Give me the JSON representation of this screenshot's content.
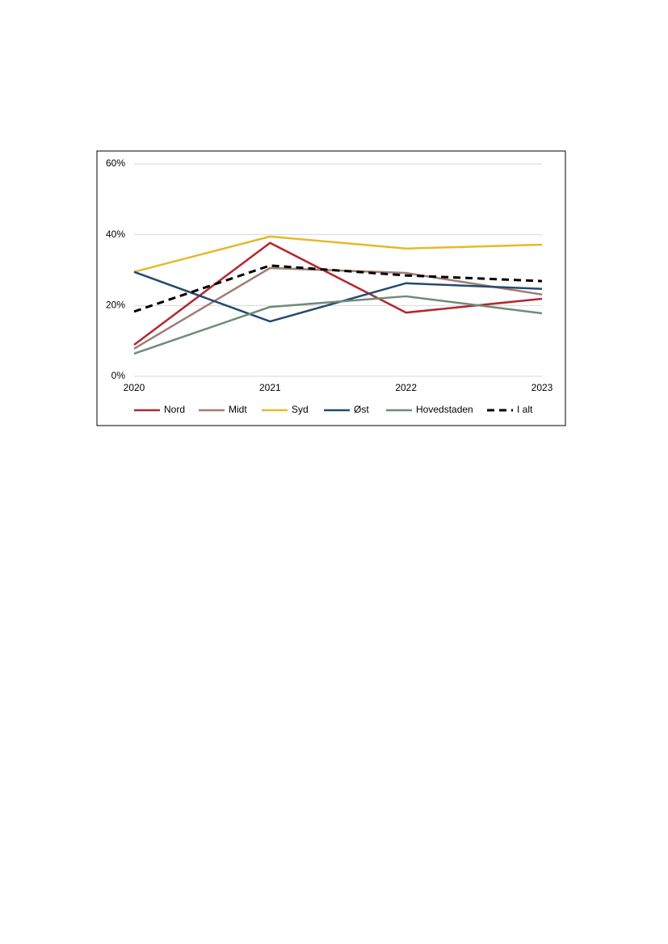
{
  "chart_data": {
    "type": "line",
    "categories": [
      "2020",
      "2021",
      "2022",
      "2023"
    ],
    "series": [
      {
        "name": "Nord",
        "color": "#b5262e",
        "values": [
          8.9,
          37.7,
          18.0,
          21.9
        ]
      },
      {
        "name": "Midt",
        "color": "#a07d77",
        "values": [
          7.8,
          30.6,
          29.2,
          23.1
        ]
      },
      {
        "name": "Syd",
        "color": "#e6b92a",
        "values": [
          29.5,
          39.5,
          36.1,
          37.2
        ]
      },
      {
        "name": "Øst",
        "color": "#234b6e",
        "values": [
          29.5,
          15.5,
          26.3,
          24.7
        ]
      },
      {
        "name": "Hovedstaden",
        "color": "#6e8c78",
        "values": [
          6.4,
          19.6,
          22.6,
          17.8
        ]
      },
      {
        "name": "I alt",
        "color": "#000000",
        "dashed": true,
        "values": [
          18.3,
          31.3,
          28.5,
          26.9
        ]
      }
    ],
    "ylim": [
      0,
      60
    ],
    "yticks": [
      {
        "value": 0,
        "label": "0%"
      },
      {
        "value": 20,
        "label": "20%"
      },
      {
        "value": 40,
        "label": "40%"
      },
      {
        "value": 60,
        "label": "60%"
      }
    ],
    "grid": true,
    "legend": "bottom"
  }
}
